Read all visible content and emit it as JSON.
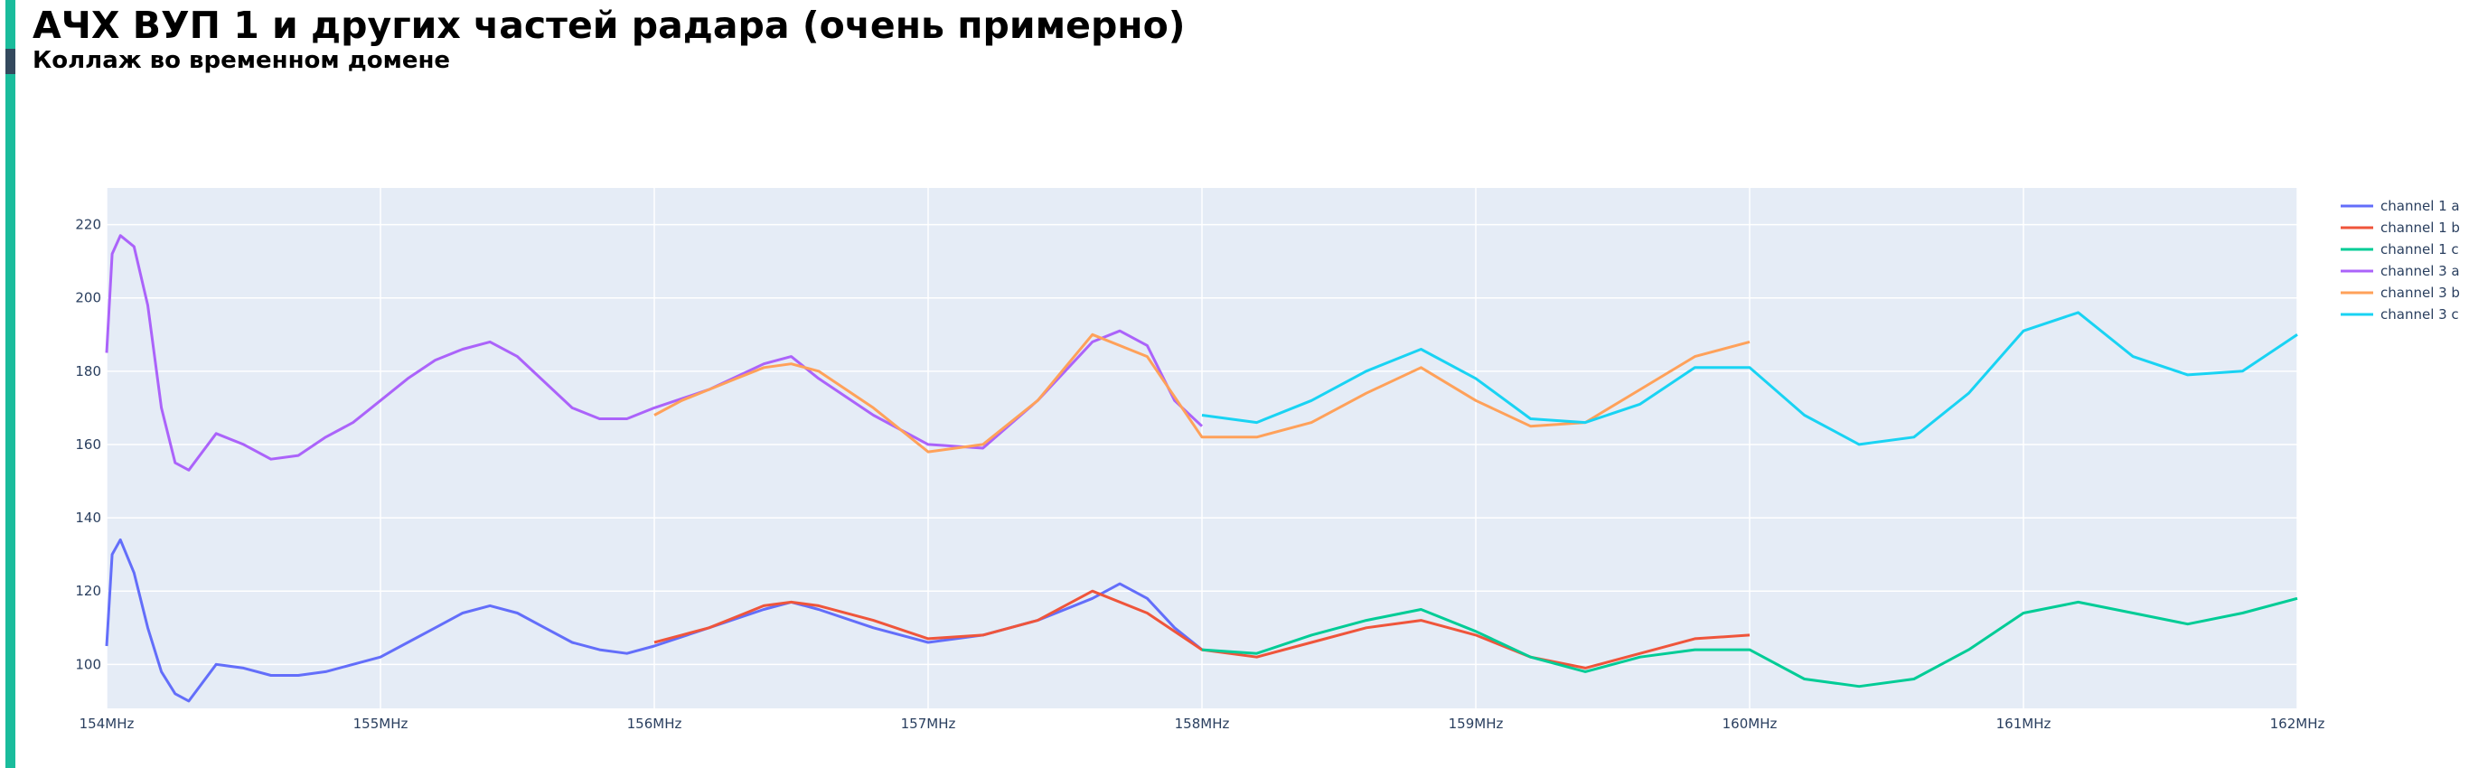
{
  "page": {
    "title": "АЧХ ВУП 1 и других частей радара (очень примерно)",
    "subtitle": "Коллаж во временном домене",
    "accent_color": "#1abc9c",
    "accent_dark_color": "#34495e"
  },
  "chart_data": {
    "type": "line",
    "title": "",
    "xlabel": "",
    "ylabel": "",
    "x_unit": "MHz",
    "xlim": [
      154,
      162
    ],
    "ylim": [
      88,
      230
    ],
    "x_ticks": [
      154,
      155,
      156,
      157,
      158,
      159,
      160,
      161,
      162
    ],
    "x_tick_labels": [
      "154MHz",
      "155MHz",
      "156MHz",
      "157MHz",
      "158MHz",
      "159MHz",
      "160MHz",
      "161MHz",
      "162MHz"
    ],
    "y_ticks": [
      100,
      120,
      140,
      160,
      180,
      200,
      220
    ],
    "y_tick_labels": [
      "100",
      "120",
      "140",
      "160",
      "180",
      "200",
      "220"
    ],
    "grid": true,
    "plot_bgcolor": "#e5ecf6",
    "legend_position": "top-right",
    "series": [
      {
        "name": "channel 1 a",
        "color": "#636efa",
        "x": [
          154.0,
          154.02,
          154.05,
          154.1,
          154.15,
          154.2,
          154.25,
          154.3,
          154.4,
          154.5,
          154.6,
          154.7,
          154.8,
          154.9,
          155.0,
          155.1,
          155.2,
          155.3,
          155.4,
          155.5,
          155.6,
          155.7,
          155.8,
          155.9,
          156.0,
          156.2,
          156.4,
          156.5,
          156.6,
          156.8,
          157.0,
          157.2,
          157.4,
          157.6,
          157.7,
          157.8,
          157.9,
          158.0
        ],
        "y": [
          105,
          130,
          134,
          125,
          110,
          98,
          92,
          90,
          100,
          99,
          97,
          97,
          98,
          100,
          102,
          106,
          110,
          114,
          116,
          114,
          110,
          106,
          104,
          103,
          105,
          110,
          115,
          117,
          115,
          110,
          106,
          108,
          112,
          118,
          122,
          118,
          110,
          104
        ]
      },
      {
        "name": "channel 1 b",
        "color": "#ef553b",
        "x": [
          156.0,
          156.1,
          156.2,
          156.3,
          156.4,
          156.5,
          156.6,
          156.8,
          157.0,
          157.2,
          157.4,
          157.6,
          157.8,
          158.0,
          158.2,
          158.4,
          158.6,
          158.8,
          159.0,
          159.2,
          159.4,
          159.6,
          159.8,
          160.0
        ],
        "y": [
          106,
          108,
          110,
          113,
          116,
          117,
          116,
          112,
          107,
          108,
          112,
          120,
          114,
          104,
          102,
          106,
          110,
          112,
          108,
          102,
          99,
          103,
          107,
          108
        ]
      },
      {
        "name": "channel 1 c",
        "color": "#00cc96",
        "x": [
          158.0,
          158.2,
          158.4,
          158.6,
          158.8,
          159.0,
          159.2,
          159.4,
          159.6,
          159.8,
          160.0,
          160.2,
          160.4,
          160.6,
          160.8,
          161.0,
          161.2,
          161.4,
          161.6,
          161.8,
          162.0
        ],
        "y": [
          104,
          103,
          108,
          112,
          115,
          109,
          102,
          98,
          102,
          104,
          104,
          96,
          94,
          96,
          104,
          114,
          117,
          114,
          111,
          114,
          118
        ]
      },
      {
        "name": "channel 3 a",
        "color": "#ab63fa",
        "x": [
          154.0,
          154.02,
          154.05,
          154.1,
          154.15,
          154.2,
          154.25,
          154.3,
          154.4,
          154.5,
          154.6,
          154.7,
          154.8,
          154.9,
          155.0,
          155.1,
          155.2,
          155.3,
          155.4,
          155.5,
          155.6,
          155.7,
          155.8,
          155.9,
          156.0,
          156.2,
          156.4,
          156.5,
          156.6,
          156.8,
          157.0,
          157.2,
          157.4,
          157.6,
          157.7,
          157.8,
          157.9,
          158.0
        ],
        "y": [
          185,
          212,
          217,
          214,
          198,
          170,
          155,
          153,
          163,
          160,
          156,
          157,
          162,
          166,
          172,
          178,
          183,
          186,
          188,
          184,
          177,
          170,
          167,
          167,
          170,
          175,
          182,
          184,
          178,
          168,
          160,
          159,
          172,
          188,
          191,
          187,
          172,
          165
        ]
      },
      {
        "name": "channel 3 b",
        "color": "#ffa15a",
        "x": [
          156.0,
          156.1,
          156.2,
          156.3,
          156.4,
          156.5,
          156.6,
          156.8,
          157.0,
          157.2,
          157.4,
          157.6,
          157.8,
          158.0,
          158.2,
          158.4,
          158.6,
          158.8,
          159.0,
          159.2,
          159.4,
          159.6,
          159.8,
          160.0
        ],
        "y": [
          168,
          172,
          175,
          178,
          181,
          182,
          180,
          170,
          158,
          160,
          172,
          190,
          184,
          162,
          162,
          166,
          174,
          181,
          172,
          165,
          166,
          175,
          184,
          188
        ]
      },
      {
        "name": "channel 3 c",
        "color": "#19d3f3",
        "x": [
          158.0,
          158.2,
          158.4,
          158.6,
          158.8,
          159.0,
          159.2,
          159.4,
          159.6,
          159.8,
          160.0,
          160.2,
          160.4,
          160.6,
          160.8,
          161.0,
          161.2,
          161.4,
          161.6,
          161.8,
          162.0
        ],
        "y": [
          168,
          166,
          172,
          180,
          186,
          178,
          167,
          166,
          171,
          181,
          181,
          168,
          160,
          162,
          174,
          191,
          196,
          184,
          179,
          180,
          190
        ]
      }
    ]
  }
}
